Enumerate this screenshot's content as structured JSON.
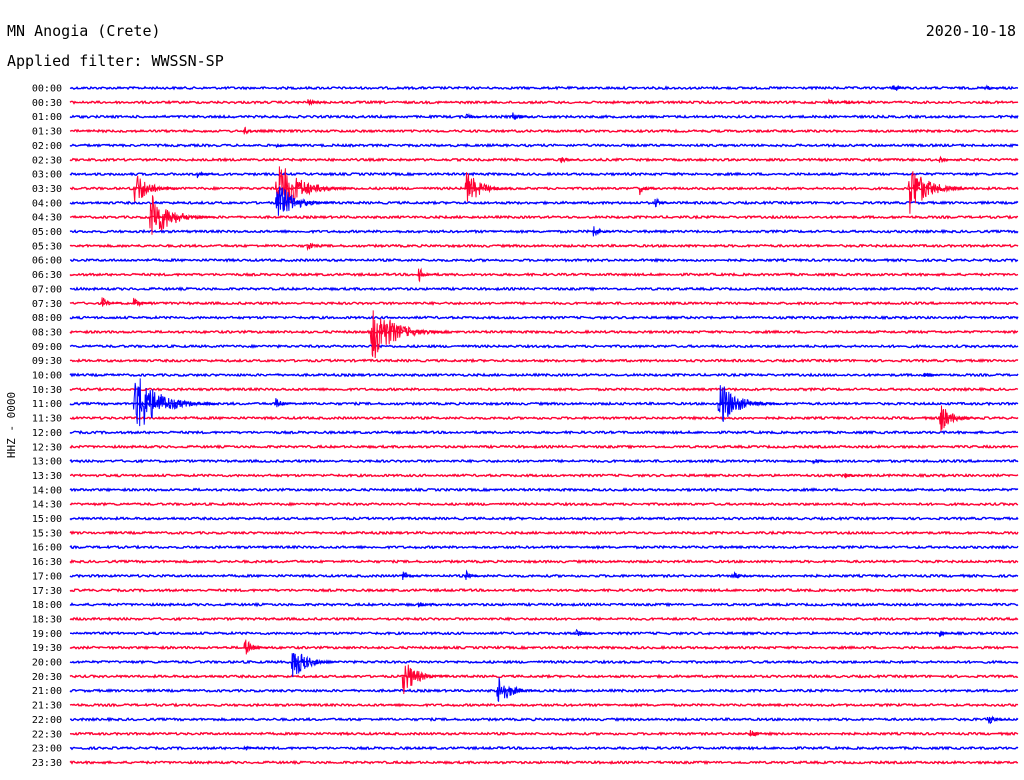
{
  "header": {
    "station": "MN Anogia (Crete)",
    "filter_label": "Applied filter: WWSSN-SP",
    "date": "2020-10-18"
  },
  "chart_data": {
    "type": "helicorder",
    "title": "MN Anogia (Crete)",
    "subtitle": "Applied filter: WWSSN-SP",
    "date": "2020-10-18",
    "ylabel": "HHZ - 0000",
    "trace_colors": [
      "#0000ff",
      "#ff0033"
    ],
    "rows": [
      "00:00",
      "00:30",
      "01:00",
      "01:30",
      "02:00",
      "02:30",
      "03:00",
      "03:30",
      "04:00",
      "04:30",
      "05:00",
      "05:30",
      "06:00",
      "06:30",
      "07:00",
      "07:30",
      "08:00",
      "08:30",
      "09:00",
      "09:30",
      "10:00",
      "10:30",
      "11:00",
      "11:30",
      "12:00",
      "12:30",
      "13:00",
      "13:30",
      "14:00",
      "14:30",
      "15:00",
      "15:30",
      "16:00",
      "16:30",
      "17:00",
      "17:30",
      "18:00",
      "18:30",
      "19:00",
      "19:30",
      "20:00",
      "20:30",
      "21:00",
      "21:30",
      "22:00",
      "22:30",
      "23:00",
      "23:30"
    ],
    "events": [
      {
        "row": 0,
        "minute": 26,
        "amplitude": 8
      },
      {
        "row": 0,
        "minute": 29,
        "amplitude": 3
      },
      {
        "row": 1,
        "minute": 7.5,
        "amplitude": 5
      },
      {
        "row": 1,
        "minute": 24,
        "amplitude": 4
      },
      {
        "row": 1,
        "minute": 24.5,
        "amplitude": 3
      },
      {
        "row": 2,
        "minute": 12.5,
        "amplitude": 5
      },
      {
        "row": 2,
        "minute": 14,
        "amplitude": 6
      },
      {
        "row": 3,
        "minute": 5.5,
        "amplitude": 5
      },
      {
        "row": 4,
        "minute": 6.5,
        "amplitude": 3
      },
      {
        "row": 5,
        "minute": 15.5,
        "amplitude": 5
      },
      {
        "row": 5,
        "minute": 27.5,
        "amplitude": 5
      },
      {
        "row": 6,
        "minute": 4,
        "amplitude": 6
      },
      {
        "row": 7,
        "minute": 2,
        "amplitude": 22
      },
      {
        "row": 7,
        "minute": 6.5,
        "amplitude": 35
      },
      {
        "row": 7,
        "minute": 12.5,
        "amplitude": 22
      },
      {
        "row": 7,
        "minute": 18,
        "amplitude": 8
      },
      {
        "row": 7,
        "minute": 26.5,
        "amplitude": 30
      },
      {
        "row": 8,
        "minute": 6.5,
        "amplitude": 26
      },
      {
        "row": 8,
        "minute": 18.5,
        "amplitude": 6
      },
      {
        "row": 9,
        "minute": 2.5,
        "amplitude": 30
      },
      {
        "row": 10,
        "minute": 16.5,
        "amplitude": 10
      },
      {
        "row": 11,
        "minute": 7.5,
        "amplitude": 6
      },
      {
        "row": 13,
        "minute": 11,
        "amplitude": 10
      },
      {
        "row": 15,
        "minute": 1,
        "amplitude": 8
      },
      {
        "row": 15,
        "minute": 2,
        "amplitude": 8
      },
      {
        "row": 17,
        "minute": 9.5,
        "amplitude": 35
      },
      {
        "row": 20,
        "minute": 27,
        "amplitude": 5
      },
      {
        "row": 22,
        "minute": 2,
        "amplitude": 38
      },
      {
        "row": 22,
        "minute": 6.5,
        "amplitude": 8
      },
      {
        "row": 22,
        "minute": 20.5,
        "amplitude": 28
      },
      {
        "row": 23,
        "minute": 27.5,
        "amplitude": 18
      },
      {
        "row": 26,
        "minute": 23.5,
        "amplitude": 5
      },
      {
        "row": 27,
        "minute": 24.5,
        "amplitude": 4
      },
      {
        "row": 34,
        "minute": 10.5,
        "amplitude": 6
      },
      {
        "row": 34,
        "minute": 12.5,
        "amplitude": 7
      },
      {
        "row": 34,
        "minute": 21,
        "amplitude": 5
      },
      {
        "row": 36,
        "minute": 11,
        "amplitude": 4
      },
      {
        "row": 38,
        "minute": 16,
        "amplitude": 5
      },
      {
        "row": 38,
        "minute": 27.5,
        "amplitude": 4
      },
      {
        "row": 39,
        "minute": 5.5,
        "amplitude": 12
      },
      {
        "row": 40,
        "minute": 7,
        "amplitude": 22
      },
      {
        "row": 41,
        "minute": 10.5,
        "amplitude": 22
      },
      {
        "row": 42,
        "minute": 13.5,
        "amplitude": 20
      },
      {
        "row": 44,
        "minute": 29,
        "amplitude": 10
      },
      {
        "row": 45,
        "minute": 21.5,
        "amplitude": 6
      },
      {
        "row": 46,
        "minute": 5.5,
        "amplitude": 3
      }
    ]
  }
}
